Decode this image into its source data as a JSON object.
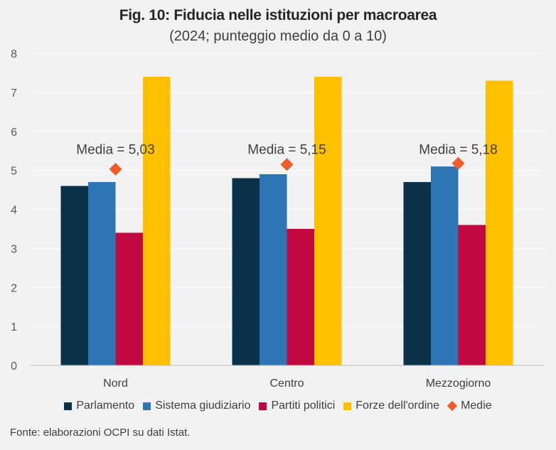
{
  "title": "Fig. 10: Fiducia nelle istituzioni per macroarea",
  "subtitle": "(2024; punteggio medio da 0 a 10)",
  "source": "Fonte: elaborazioni OCPI su dati Istat.",
  "chart_data": {
    "type": "bar",
    "categories": [
      "Nord",
      "Centro",
      "Mezzogiorno"
    ],
    "series": [
      {
        "name": "Parlamento",
        "color": "#0b3148",
        "values": [
          4.6,
          4.8,
          4.7
        ]
      },
      {
        "name": "Sistema giudiziario",
        "color": "#2e75b6",
        "values": [
          4.7,
          4.9,
          5.1
        ]
      },
      {
        "name": "Partiti politici",
        "color": "#c00a3f",
        "values": [
          3.4,
          3.5,
          3.6
        ]
      },
      {
        "name": "Forze dell'ordine",
        "color": "#ffc000",
        "values": [
          7.4,
          7.4,
          7.3
        ]
      }
    ],
    "markers": {
      "name": "Medie",
      "color": "#f15a29",
      "values": [
        5.03,
        5.15,
        5.18
      ]
    },
    "annotations": [
      "Media = 5,03",
      "Media = 5,15",
      "Media = 5,18"
    ],
    "ylim": [
      0,
      8
    ],
    "yticks": [
      "0",
      "1",
      "2",
      "3",
      "4",
      "5",
      "6",
      "7",
      "8"
    ],
    "grid": true,
    "legend_position": "bottom"
  }
}
